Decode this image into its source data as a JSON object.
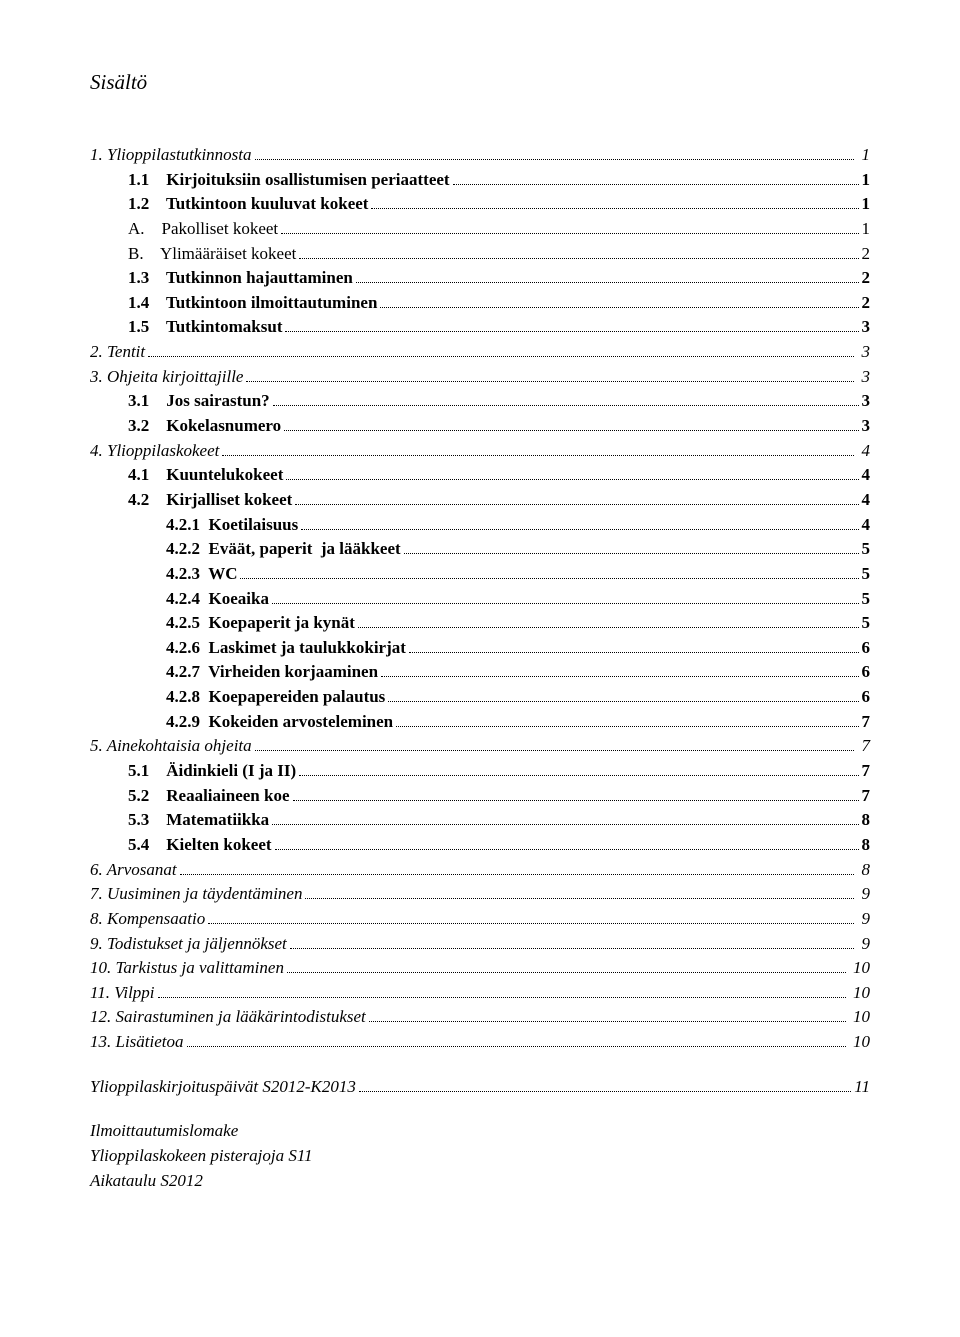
{
  "title": "Sisältö",
  "toc": [
    {
      "indent": 0,
      "num": "1.",
      "text": "Ylioppilastutkinnosta",
      "page": "1",
      "italic": true,
      "bold": false
    },
    {
      "indent": 1,
      "num": "1.1",
      "text": "Kirjoituksiin osallistumisen periaatteet",
      "page": "1",
      "italic": false,
      "bold": true
    },
    {
      "indent": 1,
      "num": "1.2",
      "text": "Tutkintoon kuuluvat kokeet",
      "page": "1",
      "italic": false,
      "bold": true
    },
    {
      "indent": 1,
      "num": "A.",
      "text": "Pakolliset kokeet",
      "page": "1",
      "italic": false,
      "bold": false
    },
    {
      "indent": 1,
      "num": "B.",
      "text": "Ylimääräiset kokeet",
      "page": "2",
      "italic": false,
      "bold": false
    },
    {
      "indent": 1,
      "num": "1.3",
      "text": "Tutkinnon hajauttaminen",
      "page": "2",
      "italic": false,
      "bold": true
    },
    {
      "indent": 1,
      "num": "1.4",
      "text": "Tutkintoon ilmoittautuminen",
      "page": "2",
      "italic": false,
      "bold": true
    },
    {
      "indent": 1,
      "num": "1.5",
      "text": "Tutkintomaksut",
      "page": "3",
      "italic": false,
      "bold": true
    },
    {
      "indent": 0,
      "num": "2.",
      "text": "Tentit",
      "page": "3",
      "italic": true,
      "bold": false
    },
    {
      "indent": 0,
      "num": "3.",
      "text": "Ohjeita kirjoittajille",
      "page": "3",
      "italic": true,
      "bold": false
    },
    {
      "indent": 1,
      "num": "3.1",
      "text": "Jos sairastun?",
      "page": "3",
      "italic": false,
      "bold": true
    },
    {
      "indent": 1,
      "num": "3.2",
      "text": "Kokelasnumero",
      "page": "3",
      "italic": false,
      "bold": true
    },
    {
      "indent": 0,
      "num": "4.",
      "text": "Ylioppilaskokeet",
      "page": "4",
      "italic": true,
      "bold": false
    },
    {
      "indent": 1,
      "num": "4.1",
      "text": "Kuuntelukokeet",
      "page": "4",
      "italic": false,
      "bold": true
    },
    {
      "indent": 1,
      "num": "4.2",
      "text": "Kirjalliset kokeet",
      "page": "4",
      "italic": false,
      "bold": true
    },
    {
      "indent": 2,
      "num": "4.2.1",
      "text": "Koetilaisuus",
      "page": "4",
      "italic": false,
      "bold": true
    },
    {
      "indent": 2,
      "num": "4.2.2",
      "text": "Eväät, paperit  ja lääkkeet",
      "page": "5",
      "italic": false,
      "bold": true
    },
    {
      "indent": 2,
      "num": "4.2.3",
      "text": "WC",
      "page": "5",
      "italic": false,
      "bold": true
    },
    {
      "indent": 2,
      "num": "4.2.4",
      "text": "Koeaika",
      "page": "5",
      "italic": false,
      "bold": true
    },
    {
      "indent": 2,
      "num": "4.2.5",
      "text": "Koepaperit ja kynät",
      "page": "5",
      "italic": false,
      "bold": true
    },
    {
      "indent": 2,
      "num": "4.2.6",
      "text": "Laskimet ja taulukkokirjat",
      "page": "6",
      "italic": false,
      "bold": true
    },
    {
      "indent": 2,
      "num": "4.2.7",
      "text": "Virheiden korjaaminen",
      "page": "6",
      "italic": false,
      "bold": true
    },
    {
      "indent": 2,
      "num": "4.2.8",
      "text": "Koepapereiden palautus",
      "page": "6",
      "italic": false,
      "bold": true
    },
    {
      "indent": 2,
      "num": "4.2.9",
      "text": "Kokeiden arvosteleminen",
      "page": "7",
      "italic": false,
      "bold": true
    },
    {
      "indent": 0,
      "num": "5.",
      "text": "Ainekohtaisia ohjeita",
      "page": "7",
      "italic": true,
      "bold": false
    },
    {
      "indent": 1,
      "num": "5.1",
      "text": "Äidinkieli (I ja II)",
      "page": "7",
      "italic": false,
      "bold": true
    },
    {
      "indent": 1,
      "num": "5.2",
      "text": "Reaaliaineen koe",
      "page": "7",
      "italic": false,
      "bold": true
    },
    {
      "indent": 1,
      "num": "5.3",
      "text": "Matematiikka",
      "page": "8",
      "italic": false,
      "bold": true
    },
    {
      "indent": 1,
      "num": "5.4",
      "text": "Kielten kokeet",
      "page": "8",
      "italic": false,
      "bold": true
    },
    {
      "indent": 0,
      "num": "6.",
      "text": "Arvosanat",
      "page": "8",
      "italic": true,
      "bold": false
    },
    {
      "indent": 0,
      "num": "7.",
      "text": "Uusiminen ja täydentäminen",
      "page": "9",
      "italic": true,
      "bold": false
    },
    {
      "indent": 0,
      "num": "8.",
      "text": "Kompensaatio",
      "page": "9",
      "italic": true,
      "bold": false
    },
    {
      "indent": 0,
      "num": "9.",
      "text": "Todistukset ja jäljennökset",
      "page": "9",
      "italic": true,
      "bold": false
    },
    {
      "indent": 0,
      "num": "10.",
      "text": "Tarkistus ja valittaminen",
      "page": "10",
      "italic": true,
      "bold": false
    },
    {
      "indent": 0,
      "num": "11.",
      "text": "Vilppi",
      "page": "10",
      "italic": true,
      "bold": false
    },
    {
      "indent": 0,
      "num": "12.",
      "text": "Sairastuminen ja lääkärintodistukset",
      "page": "10",
      "italic": true,
      "bold": false
    },
    {
      "indent": 0,
      "num": "13.",
      "text": "Lisätietoa",
      "page": "10",
      "italic": true,
      "bold": false
    }
  ],
  "appendix": {
    "num": "",
    "text": "Ylioppilaskirjoituspäivät S2012-K2013",
    "page": "11"
  },
  "footer_lines": [
    "Ilmoittautumislomake",
    "Ylioppilaskokeen pisterajoja S11",
    "Aikataulu S2012"
  ]
}
